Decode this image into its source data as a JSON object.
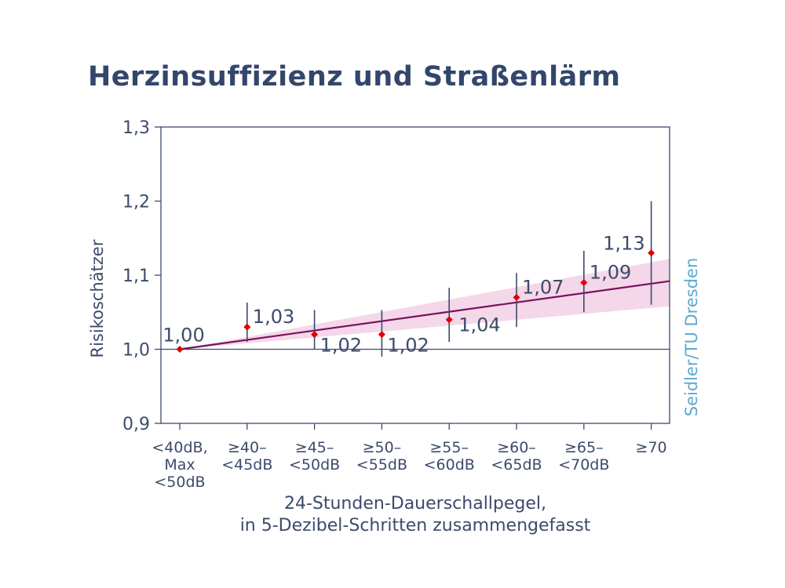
{
  "title": "Herzinsuffizienz und Straßenlärm",
  "credit": "Seidler/TU Dresden",
  "colors": {
    "axis": "#3d4a6b",
    "point": "#e00000",
    "trend": "#7b1060",
    "band": "#f2d0e4",
    "credit": "#5ea8cf"
  },
  "chart_data": {
    "type": "scatter",
    "ylabel": "Risikoschätzer",
    "xlabel_lines": [
      "24-Stunden-Dauerschallpegel,",
      "in 5-Dezibel-Schritten zusammengefasst"
    ],
    "ylim": [
      0.9,
      1.3
    ],
    "yticks": [
      {
        "value": 0.9,
        "label": "0,9"
      },
      {
        "value": 1.0,
        "label": "1,0"
      },
      {
        "value": 1.1,
        "label": "1,1"
      },
      {
        "value": 1.2,
        "label": "1,2"
      },
      {
        "value": 1.3,
        "label": "1,3"
      }
    ],
    "reference_line": 1.0,
    "grid": false,
    "categories": [
      {
        "lines": [
          "<40dB,",
          "Max",
          "<50dB"
        ]
      },
      {
        "lines": [
          "≥40–",
          "<45dB"
        ]
      },
      {
        "lines": [
          "≥45–",
          "<50dB"
        ]
      },
      {
        "lines": [
          "≥50–",
          "<55dB"
        ]
      },
      {
        "lines": [
          "≥55–",
          "<60dB"
        ]
      },
      {
        "lines": [
          "≥60–",
          "<65dB"
        ]
      },
      {
        "lines": [
          "≥65–",
          "<70dB"
        ]
      },
      {
        "lines": [
          "≥70"
        ]
      }
    ],
    "points": [
      {
        "value": 1.0,
        "label": "1,00",
        "ci": null,
        "label_pos": "above"
      },
      {
        "value": 1.03,
        "label": "1,03",
        "ci": [
          1.01,
          1.063
        ],
        "label_pos": "above-right"
      },
      {
        "value": 1.02,
        "label": "1,02",
        "ci": [
          1.0,
          1.053
        ],
        "label_pos": "below-right"
      },
      {
        "value": 1.02,
        "label": "1,02",
        "ci": [
          0.99,
          1.053
        ],
        "label_pos": "below-right"
      },
      {
        "value": 1.04,
        "label": "1,04",
        "ci": [
          1.01,
          1.083
        ],
        "label_pos": "right"
      },
      {
        "value": 1.07,
        "label": "1,07",
        "ci": [
          1.03,
          1.103
        ],
        "label_pos": "above-right"
      },
      {
        "value": 1.09,
        "label": "1,09",
        "ci": [
          1.05,
          1.133
        ],
        "label_pos": "above-right"
      },
      {
        "value": 1.13,
        "label": "1,13",
        "ci": [
          1.06,
          1.2
        ],
        "label_pos": "left"
      }
    ],
    "trend": {
      "start_value": 1.0,
      "end_value": 1.092,
      "band_end_low": 1.058,
      "band_end_high": 1.122
    }
  }
}
